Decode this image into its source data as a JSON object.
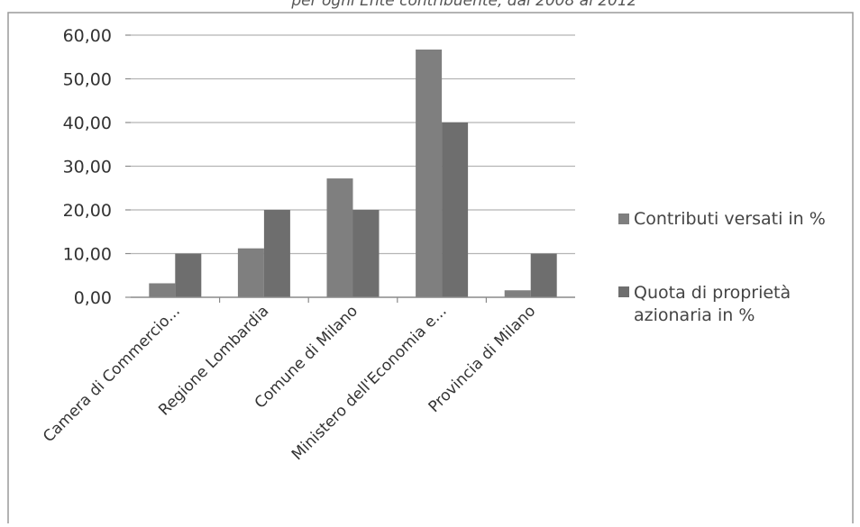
{
  "chart_data": {
    "type": "bar",
    "title": "per ogni Ente contribuente, dal 2008 al 2012",
    "categories": [
      "Camera di Commercio...",
      "Regione Lombardia",
      "Comune di Milano",
      "Ministero dell'Economia e...",
      "Provincia di Milano"
    ],
    "series": [
      {
        "name": "Contributi versati in %",
        "values": [
          3.2,
          11.2,
          27.2,
          56.7,
          1.6
        ],
        "color": "#7f7f7f"
      },
      {
        "name": "Quota di proprietà azionaria in %",
        "values": [
          10.0,
          20.0,
          20.0,
          40.0,
          10.0
        ],
        "color": "#6e6e6e"
      }
    ],
    "yticks": [
      "0,00",
      "10,00",
      "20,00",
      "30,00",
      "40,00",
      "50,00",
      "60,00"
    ],
    "ylim": [
      0,
      60
    ],
    "grid": true,
    "legend_position": "right"
  }
}
